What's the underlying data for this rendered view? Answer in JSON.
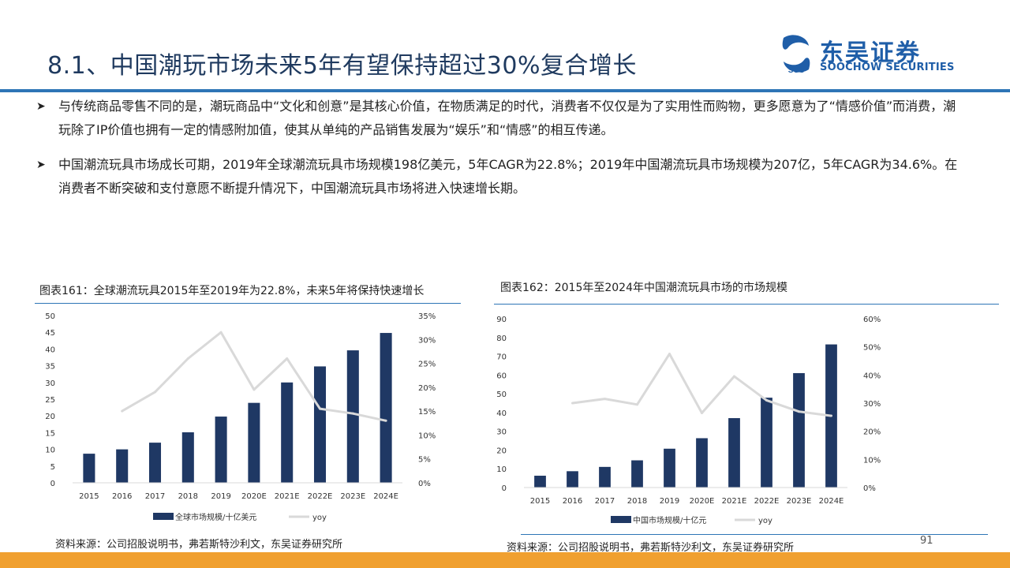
{
  "header": {
    "title": "8.1、中国潮玩市场未来5年有望保持超过30%复合增长",
    "logo_cn": "东吴证券",
    "logo_en": "SOOCHOW SECURITIES",
    "logo_mark": "SCS"
  },
  "bullets": [
    "与传统商品零售不同的是，潮玩商品中“文化和创意”是其核心价值，在物质满足的时代，消费者不仅仅是为了实用性而购物，更多愿意为了“情感价值”而消费，潮玩除了IP价值也拥有一定的情感附加值，使其从单纯的产品销售发展为“娱乐”和“情感”的相互传递。",
    "中国潮流玩具市场成长可期，2019年全球潮流玩具市场规模198亿美元，5年CAGR为22.8%；2019年中国潮流玩具市场规模为207亿，5年CAGR为34.6%。在消费者不断突破和支付意愿不断提升情况下，中国潮流玩具市场将进入快速增长期。"
  ],
  "figures": [
    {
      "title": "图表161：全球潮流玩具2015年至2019年为22.8%，未来5年将保持快速增长",
      "source": "资料来源：公司招股说明书，弗若斯特沙利文，东吴证券研究所"
    },
    {
      "title": "图表162：2015年至2024年中国潮流玩具市场的市场规模",
      "source": "资料来源：公司招股说明书，弗若斯特沙利文，东吴证券研究所"
    }
  ],
  "page_number": "91",
  "colors": {
    "bar": "#1f3864",
    "line": "#d9d9d9",
    "accent": "#2e75b6",
    "footer": "#f0a030"
  },
  "chart_data": [
    {
      "type": "bar",
      "categories": [
        "2015",
        "2016",
        "2017",
        "2018",
        "2019",
        "2020E",
        "2021E",
        "2022E",
        "2023E",
        "2024E"
      ],
      "series": [
        {
          "name": "全球市场规模/十亿美元",
          "type": "bar",
          "axis": "left",
          "values": [
            8.7,
            10.0,
            12.0,
            15.1,
            19.8,
            23.9,
            30.0,
            34.8,
            39.6,
            44.8
          ]
        },
        {
          "name": "yoy",
          "type": "line",
          "axis": "right",
          "values": [
            null,
            0.15,
            0.19,
            0.26,
            0.315,
            0.195,
            0.26,
            0.155,
            0.145,
            0.13
          ]
        }
      ],
      "ylim": [
        0,
        50
      ],
      "yticks": [
        "0",
        "5",
        "10",
        "15",
        "20",
        "25",
        "30",
        "35",
        "40",
        "45",
        "50"
      ],
      "y2lim": [
        0,
        0.35
      ],
      "y2ticks": [
        "0%",
        "5%",
        "10%",
        "15%",
        "20%",
        "25%",
        "30%",
        "35%"
      ],
      "legend": "bottom",
      "grid": false
    },
    {
      "type": "bar",
      "categories": [
        "2015",
        "2016",
        "2017",
        "2018",
        "2019",
        "2020E",
        "2021E",
        "2022E",
        "2023E",
        "2024E"
      ],
      "series": [
        {
          "name": "中国市场规模/十亿元",
          "type": "bar",
          "axis": "left",
          "values": [
            6.3,
            8.7,
            11.0,
            14.5,
            20.7,
            26.3,
            37.0,
            47.9,
            61.0,
            76.3
          ]
        },
        {
          "name": "yoy",
          "type": "line",
          "axis": "right",
          "values": [
            null,
            0.3,
            0.315,
            0.295,
            0.475,
            0.265,
            0.395,
            0.31,
            0.27,
            0.255
          ]
        }
      ],
      "ylim": [
        0,
        90
      ],
      "yticks": [
        "0",
        "10",
        "20",
        "30",
        "40",
        "50",
        "60",
        "70",
        "80",
        "90"
      ],
      "y2lim": [
        0,
        0.6
      ],
      "y2ticks": [
        "0%",
        "10%",
        "20%",
        "30%",
        "40%",
        "50%",
        "60%"
      ],
      "legend": "bottom",
      "grid": false
    }
  ]
}
